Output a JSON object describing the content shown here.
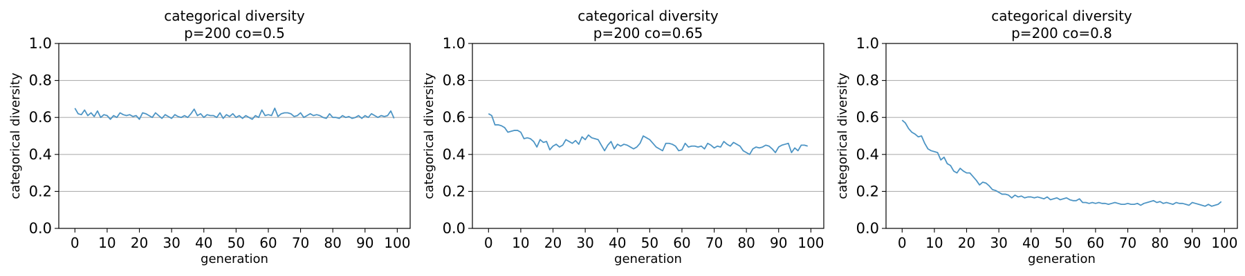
{
  "chart_data": [
    {
      "type": "line",
      "title": "categorical diversity",
      "subtitle": "p=200 co=0.5",
      "xlabel": "generation",
      "ylabel": "categorical diversity",
      "xlim": [
        -5,
        104
      ],
      "ylim": [
        0.0,
        1.0
      ],
      "xticks": [
        "0",
        "10",
        "20",
        "30",
        "40",
        "50",
        "60",
        "70",
        "80",
        "90",
        "100"
      ],
      "yticks": [
        "0.0",
        "0.2",
        "0.4",
        "0.6",
        "0.8",
        "1.0"
      ],
      "grid": "horizontal",
      "color": "#4c94c4",
      "series": [
        {
          "x": [
            0,
            1,
            2,
            3,
            4,
            5,
            6,
            7,
            8,
            9,
            10,
            11,
            12,
            13,
            14,
            15,
            16,
            17,
            18,
            19,
            20,
            21,
            22,
            23,
            24,
            25,
            26,
            27,
            28,
            29,
            30,
            31,
            32,
            33,
            34,
            35,
            36,
            37,
            38,
            39,
            40,
            41,
            42,
            43,
            44,
            45,
            46,
            47,
            48,
            49,
            50,
            51,
            52,
            53,
            54,
            55,
            56,
            57,
            58,
            59,
            60,
            61,
            62,
            63,
            64,
            65,
            66,
            67,
            68,
            69,
            70,
            71,
            72,
            73,
            74,
            75,
            76,
            77,
            78,
            79,
            80,
            81,
            82,
            83,
            84,
            85,
            86,
            87,
            88,
            89,
            90,
            91,
            92,
            93,
            94,
            95,
            96,
            97,
            98,
            99
          ],
          "values": [
            0.65,
            0.62,
            0.615,
            0.64,
            0.61,
            0.625,
            0.605,
            0.635,
            0.6,
            0.615,
            0.61,
            0.59,
            0.61,
            0.6,
            0.625,
            0.615,
            0.61,
            0.615,
            0.605,
            0.61,
            0.59,
            0.625,
            0.62,
            0.61,
            0.6,
            0.625,
            0.61,
            0.595,
            0.615,
            0.605,
            0.595,
            0.615,
            0.605,
            0.6,
            0.61,
            0.6,
            0.62,
            0.645,
            0.61,
            0.62,
            0.6,
            0.615,
            0.61,
            0.61,
            0.6,
            0.625,
            0.595,
            0.615,
            0.605,
            0.62,
            0.6,
            0.61,
            0.595,
            0.61,
            0.6,
            0.59,
            0.61,
            0.6,
            0.64,
            0.61,
            0.615,
            0.61,
            0.65,
            0.605,
            0.62,
            0.625,
            0.625,
            0.62,
            0.605,
            0.61,
            0.625,
            0.6,
            0.61,
            0.62,
            0.61,
            0.615,
            0.61,
            0.6,
            0.595,
            0.62,
            0.6,
            0.6,
            0.595,
            0.61,
            0.6,
            0.605,
            0.595,
            0.6,
            0.61,
            0.595,
            0.61,
            0.6,
            0.62,
            0.61,
            0.6,
            0.61,
            0.605,
            0.61,
            0.635,
            0.595
          ]
        }
      ]
    },
    {
      "type": "line",
      "title": "categorical diversity",
      "subtitle": "p=200 co=0.65",
      "xlabel": "generation",
      "ylabel": "categorical diversity",
      "xlim": [
        -5,
        104
      ],
      "ylim": [
        0.0,
        1.0
      ],
      "xticks": [
        "0",
        "10",
        "20",
        "30",
        "40",
        "50",
        "60",
        "70",
        "80",
        "90",
        "100"
      ],
      "yticks": [
        "0.0",
        "0.2",
        "0.4",
        "0.6",
        "0.8",
        "1.0"
      ],
      "grid": "horizontal",
      "color": "#4c94c4",
      "series": [
        {
          "x": [
            0,
            1,
            2,
            3,
            4,
            5,
            6,
            7,
            8,
            9,
            10,
            11,
            12,
            13,
            14,
            15,
            16,
            17,
            18,
            19,
            20,
            21,
            22,
            23,
            24,
            25,
            26,
            27,
            28,
            29,
            30,
            31,
            32,
            33,
            34,
            35,
            36,
            37,
            38,
            39,
            40,
            41,
            42,
            43,
            44,
            45,
            46,
            47,
            48,
            49,
            50,
            51,
            52,
            53,
            54,
            55,
            56,
            57,
            58,
            59,
            60,
            61,
            62,
            63,
            64,
            65,
            66,
            67,
            68,
            69,
            70,
            71,
            72,
            73,
            74,
            75,
            76,
            77,
            78,
            79,
            80,
            81,
            82,
            83,
            84,
            85,
            86,
            87,
            88,
            89,
            90,
            91,
            92,
            93,
            94,
            95,
            96,
            97,
            98,
            99
          ],
          "values": [
            0.62,
            0.61,
            0.56,
            0.56,
            0.555,
            0.545,
            0.52,
            0.525,
            0.53,
            0.53,
            0.52,
            0.485,
            0.49,
            0.485,
            0.47,
            0.44,
            0.48,
            0.465,
            0.47,
            0.425,
            0.445,
            0.455,
            0.44,
            0.45,
            0.48,
            0.47,
            0.46,
            0.475,
            0.455,
            0.495,
            0.48,
            0.505,
            0.49,
            0.485,
            0.48,
            0.45,
            0.42,
            0.45,
            0.47,
            0.43,
            0.455,
            0.445,
            0.455,
            0.45,
            0.44,
            0.43,
            0.44,
            0.46,
            0.5,
            0.49,
            0.48,
            0.46,
            0.44,
            0.43,
            0.42,
            0.46,
            0.46,
            0.455,
            0.445,
            0.42,
            0.425,
            0.46,
            0.44,
            0.445,
            0.445,
            0.44,
            0.445,
            0.43,
            0.46,
            0.45,
            0.435,
            0.445,
            0.44,
            0.47,
            0.455,
            0.445,
            0.465,
            0.455,
            0.445,
            0.42,
            0.41,
            0.4,
            0.43,
            0.44,
            0.435,
            0.44,
            0.45,
            0.445,
            0.43,
            0.41,
            0.44,
            0.45,
            0.455,
            0.46,
            0.41,
            0.435,
            0.42,
            0.45,
            0.45,
            0.445
          ]
        }
      ]
    },
    {
      "type": "line",
      "title": "categorical diversity",
      "subtitle": "p=200 co=0.8",
      "xlabel": "generation",
      "ylabel": "categorical diversity",
      "xlim": [
        -5,
        104
      ],
      "ylim": [
        0.0,
        1.0
      ],
      "xticks": [
        "0",
        "10",
        "20",
        "30",
        "40",
        "50",
        "60",
        "70",
        "80",
        "90",
        "100"
      ],
      "yticks": [
        "0.0",
        "0.2",
        "0.4",
        "0.6",
        "0.8",
        "1.0"
      ],
      "grid": "horizontal",
      "color": "#4c94c4",
      "series": [
        {
          "x": [
            0,
            1,
            2,
            3,
            4,
            5,
            6,
            7,
            8,
            9,
            10,
            11,
            12,
            13,
            14,
            15,
            16,
            17,
            18,
            19,
            20,
            21,
            22,
            23,
            24,
            25,
            26,
            27,
            28,
            29,
            30,
            31,
            32,
            33,
            34,
            35,
            36,
            37,
            38,
            39,
            40,
            41,
            42,
            43,
            44,
            45,
            46,
            47,
            48,
            49,
            50,
            51,
            52,
            53,
            54,
            55,
            56,
            57,
            58,
            59,
            60,
            61,
            62,
            63,
            64,
            65,
            66,
            67,
            68,
            69,
            70,
            71,
            72,
            73,
            74,
            75,
            76,
            77,
            78,
            79,
            80,
            81,
            82,
            83,
            84,
            85,
            86,
            87,
            88,
            89,
            90,
            91,
            92,
            93,
            94,
            95,
            96,
            97,
            98,
            99
          ],
          "values": [
            0.585,
            0.57,
            0.54,
            0.52,
            0.51,
            0.495,
            0.5,
            0.46,
            0.43,
            0.42,
            0.415,
            0.41,
            0.37,
            0.385,
            0.35,
            0.34,
            0.31,
            0.3,
            0.325,
            0.31,
            0.3,
            0.3,
            0.28,
            0.26,
            0.235,
            0.25,
            0.245,
            0.23,
            0.21,
            0.205,
            0.195,
            0.185,
            0.185,
            0.18,
            0.165,
            0.18,
            0.17,
            0.175,
            0.165,
            0.17,
            0.17,
            0.165,
            0.17,
            0.165,
            0.16,
            0.17,
            0.155,
            0.16,
            0.165,
            0.155,
            0.16,
            0.165,
            0.155,
            0.15,
            0.15,
            0.16,
            0.14,
            0.14,
            0.135,
            0.14,
            0.135,
            0.14,
            0.135,
            0.135,
            0.13,
            0.135,
            0.14,
            0.135,
            0.13,
            0.13,
            0.135,
            0.13,
            0.13,
            0.135,
            0.125,
            0.135,
            0.14,
            0.145,
            0.15,
            0.14,
            0.145,
            0.135,
            0.14,
            0.135,
            0.13,
            0.14,
            0.135,
            0.135,
            0.13,
            0.125,
            0.14,
            0.135,
            0.13,
            0.125,
            0.12,
            0.13,
            0.12,
            0.125,
            0.13,
            0.145
          ]
        }
      ]
    }
  ]
}
